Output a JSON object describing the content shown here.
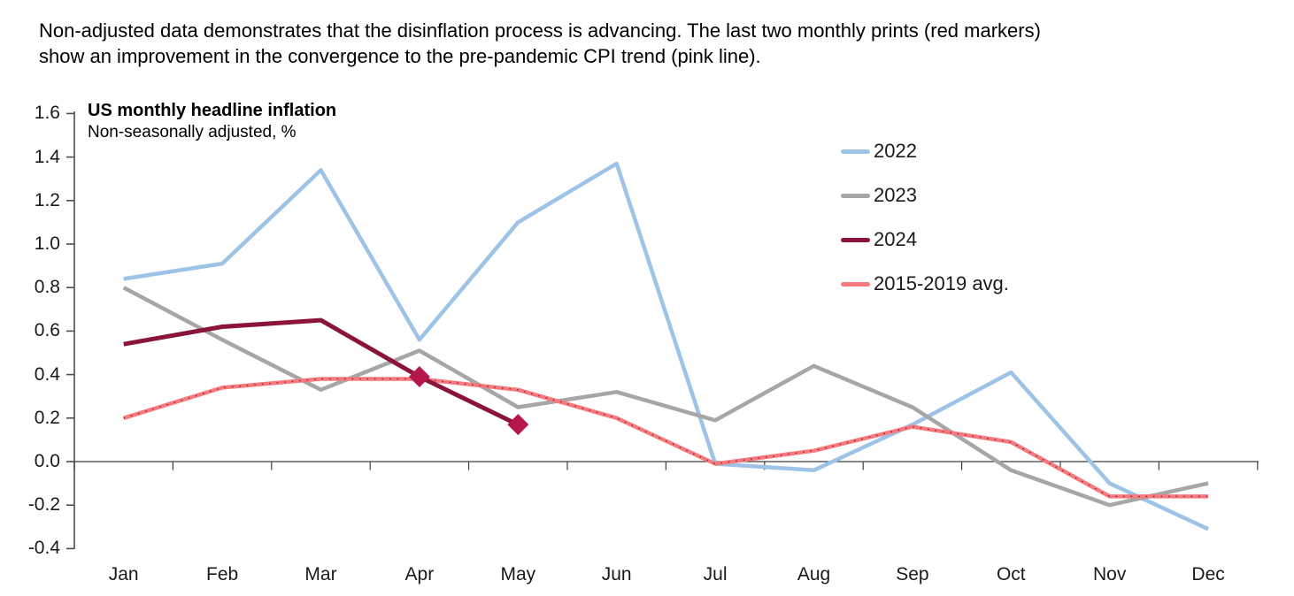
{
  "header": {
    "line1": "Non-adjusted data demonstrates that the disinflation process is advancing. The last two monthly prints (red markers)",
    "line2": "show an improvement in the convergence to the pre-pandemic CPI trend (pink line)."
  },
  "chart": {
    "title": "US monthly headline inflation",
    "subtitle": "Non-seasonally adjusted, %"
  },
  "chart_data": {
    "type": "line",
    "title": "US monthly headline inflation",
    "subtitle": "Non-seasonally adjusted, %",
    "categories": [
      "Jan",
      "Feb",
      "Mar",
      "Apr",
      "May",
      "Jun",
      "Jul",
      "Aug",
      "Sep",
      "Oct",
      "Nov",
      "Dec"
    ],
    "ylim": [
      -0.4,
      1.6
    ],
    "y_axis": {
      "ticks": [
        "1.6",
        "1.4",
        "1.2",
        "1.0",
        "0.8",
        "0.6",
        "0.4",
        "0.2",
        "0.0",
        "-0.2",
        "-0.4"
      ]
    },
    "grid": "zero-line-only",
    "legend_position": "top-right",
    "series": [
      {
        "name": "2022",
        "color": "#9DC3E6",
        "values": [
          0.84,
          0.91,
          1.34,
          0.56,
          1.1,
          1.37,
          -0.01,
          -0.04,
          0.17,
          0.41,
          -0.1,
          -0.31
        ]
      },
      {
        "name": "2023",
        "color": "#A6A6A6",
        "values": [
          0.8,
          0.56,
          0.33,
          0.51,
          0.25,
          0.32,
          0.19,
          0.44,
          0.25,
          -0.04,
          -0.2,
          -0.1
        ]
      },
      {
        "name": "2024",
        "color": "#8B1538",
        "marker_color": "#B5174B",
        "marker_shape": "diamond",
        "marker_indices": [
          3,
          4
        ],
        "values": [
          0.54,
          0.62,
          0.65,
          0.39,
          0.17
        ]
      },
      {
        "name": "2015-2019 avg.",
        "color": "#F5797D",
        "dotted_overlay_color": "#8B1538",
        "values": [
          0.2,
          0.34,
          0.38,
          0.38,
          0.33,
          0.2,
          -0.01,
          0.05,
          0.16,
          0.09,
          -0.16,
          -0.16
        ]
      }
    ]
  }
}
